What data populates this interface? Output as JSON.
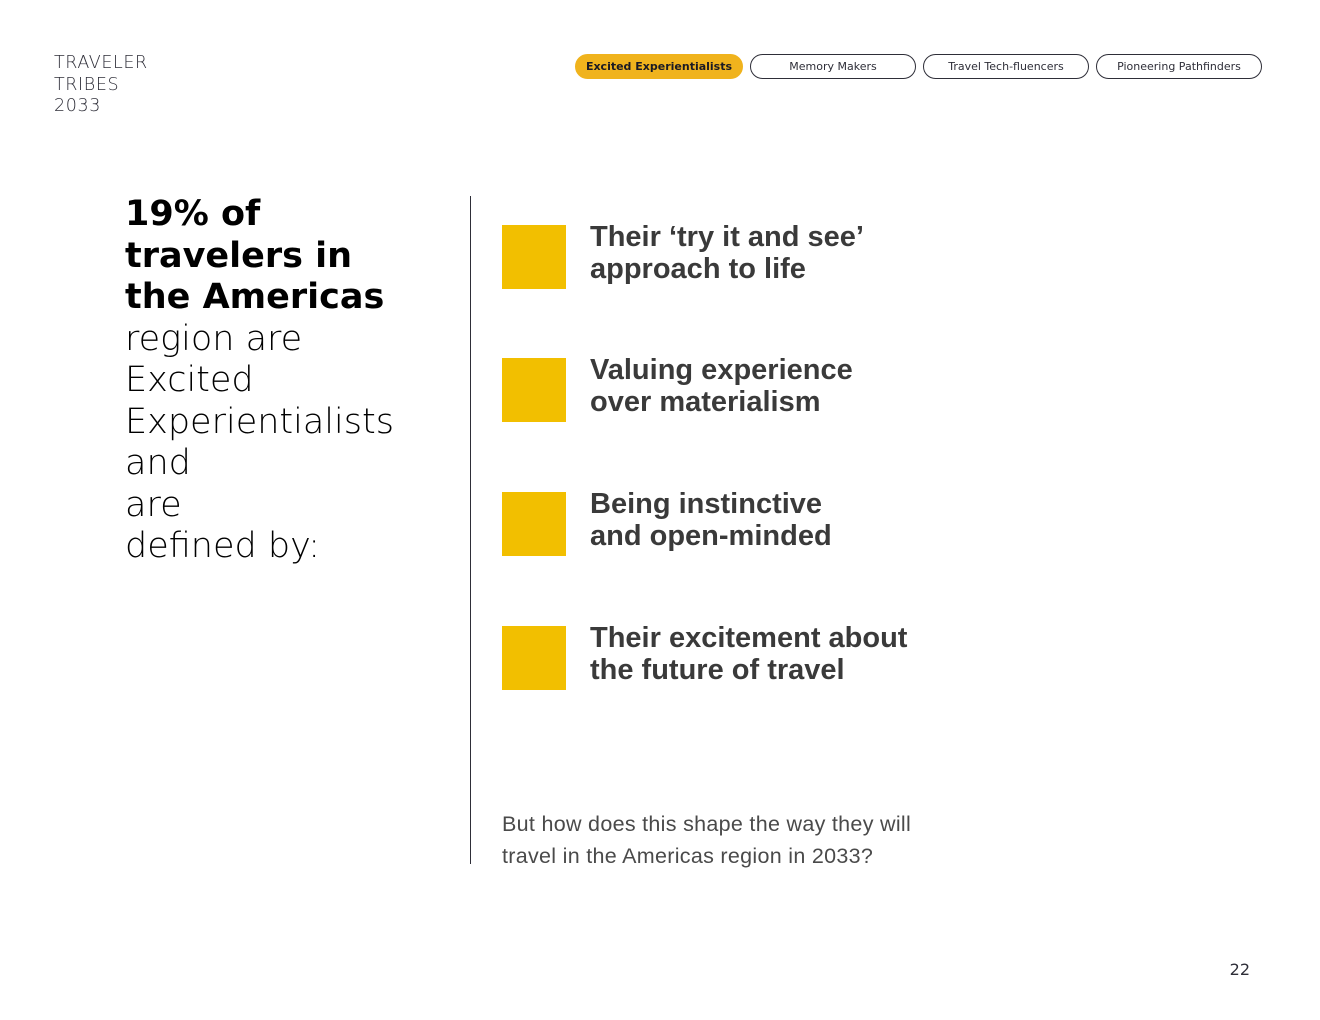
{
  "brand": {
    "line1": "TRAVELER",
    "line2": "TRIBES",
    "line3": "2033"
  },
  "tabs": [
    {
      "label": "Excited Experientialists",
      "active": true
    },
    {
      "label": "Memory Makers",
      "active": false
    },
    {
      "label": "Travel Tech-fluencers",
      "active": false
    },
    {
      "label": "Pioneering Pathfinders",
      "active": false
    }
  ],
  "headline": {
    "bold_1": "19% of",
    "bold_2": "travelers in",
    "bold_3": "the Americas",
    "light_1": "region are",
    "light_2": "Excited",
    "light_3": "Experientialists and",
    "light_4": "are",
    "light_5": "defined by:"
  },
  "traits": [
    {
      "line1": "Their ‘try it and see’",
      "line2": "approach to life"
    },
    {
      "line1": "Valuing experience",
      "line2": "over materialism"
    },
    {
      "line1": "Being instinctive",
      "line2": "and open-minded"
    },
    {
      "line1": "Their excitement about",
      "line2": "the future of travel"
    }
  ],
  "question": {
    "line1": "But how does this shape the way they will",
    "line2": "travel in the Americas region in 2033?"
  },
  "page_number": "22",
  "colors": {
    "accent": "#f2bf00",
    "tab_active": "#f0b31d",
    "text": "#2e2e38"
  }
}
